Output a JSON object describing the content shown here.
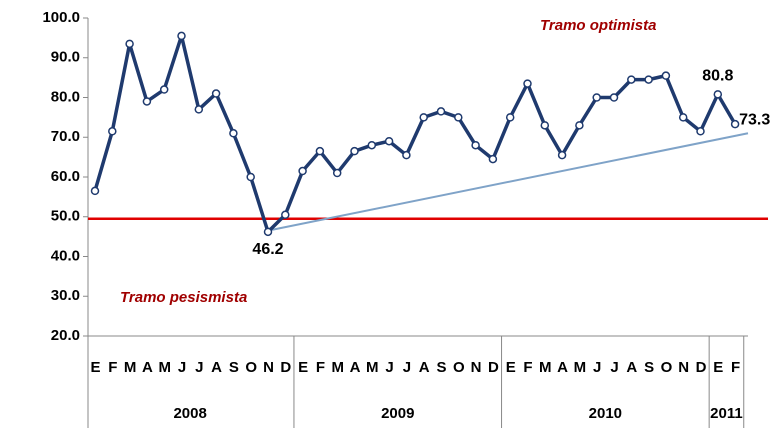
{
  "chart_data": {
    "type": "line",
    "annotations": [
      "Tramo optimista",
      "Tramo pesismista"
    ],
    "categories": [
      "E",
      "F",
      "M",
      "A",
      "M",
      "J",
      "J",
      "A",
      "S",
      "O",
      "N",
      "D",
      "E",
      "F",
      "M",
      "A",
      "M",
      "J",
      "J",
      "A",
      "S",
      "O",
      "N",
      "D",
      "E",
      "F",
      "M",
      "A",
      "M",
      "J",
      "J",
      "A",
      "S",
      "O",
      "N",
      "D",
      "E",
      "F"
    ],
    "groups": [
      {
        "label": "2008",
        "span": 12
      },
      {
        "label": "2009",
        "span": 12
      },
      {
        "label": "2010",
        "span": 12
      },
      {
        "label": "2011",
        "span": 2
      }
    ],
    "series": [
      {
        "color": "#1f3a6e",
        "values": [
          56.5,
          71.5,
          93.5,
          79,
          82,
          95.5,
          77,
          81,
          71,
          60,
          46.2,
          50.5,
          61.5,
          66.5,
          61,
          66.5,
          68,
          69,
          65.5,
          75,
          76.5,
          75,
          68,
          64.5,
          75,
          83.5,
          73,
          65.5,
          73,
          80,
          80,
          84.5,
          84.5,
          85.5,
          75,
          71.5,
          80.8,
          73.3
        ],
        "value_labels": [
          null,
          null,
          null,
          null,
          null,
          null,
          null,
          null,
          null,
          null,
          "46.2",
          null,
          null,
          null,
          null,
          null,
          null,
          null,
          null,
          null,
          null,
          null,
          null,
          null,
          null,
          null,
          null,
          null,
          null,
          null,
          null,
          null,
          null,
          null,
          null,
          null,
          "80.8",
          "73.3"
        ]
      }
    ],
    "reference_line": {
      "value": 49.5,
      "color": "#e00000"
    },
    "trend_line": {
      "values": [
        46.5,
        71
      ],
      "color": "#7fa3c8"
    },
    "ylim": [
      20,
      100
    ],
    "yticks": [
      {
        "value": 20,
        "label": "20.0"
      },
      {
        "value": 30,
        "label": "30.0"
      },
      {
        "value": 40,
        "label": "40.0"
      },
      {
        "value": 50,
        "label": "50.0"
      },
      {
        "value": 60,
        "label": "60.0"
      },
      {
        "value": 70,
        "label": "70.0"
      },
      {
        "value": 80,
        "label": "80.0"
      },
      {
        "value": 90,
        "label": "90.0"
      },
      {
        "value": 100,
        "label": "100.0"
      }
    ]
  }
}
